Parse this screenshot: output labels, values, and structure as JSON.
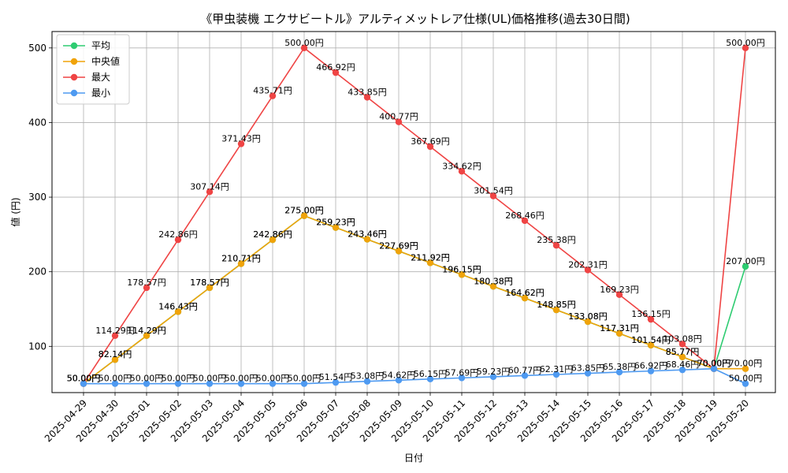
{
  "chart_data": {
    "type": "line",
    "title": "《甲虫装機 エクサビートル》アルティメットレア仕様(UL)価格推移(過去30日間)",
    "xlabel": "日付",
    "ylabel": "値 (円)",
    "ylim": [
      38,
      522
    ],
    "yticks": [
      100,
      200,
      300,
      400,
      500
    ],
    "grid": true,
    "legend_position": "top-left",
    "label_suffix": "円",
    "x": [
      "2025-04-29",
      "2025-04-30",
      "2025-05-01",
      "2025-05-02",
      "2025-05-03",
      "2025-05-04",
      "2025-05-05",
      "2025-05-06",
      "2025-05-07",
      "2025-05-08",
      "2025-05-09",
      "2025-05-10",
      "2025-05-11",
      "2025-05-12",
      "2025-05-13",
      "2025-05-14",
      "2025-05-15",
      "2025-05-16",
      "2025-05-17",
      "2025-05-18",
      "2025-05-19",
      "2025-05-20"
    ],
    "series": [
      {
        "name": "平均",
        "color": "#2ecc71",
        "values": [
          50.0,
          82.14,
          114.29,
          146.43,
          178.57,
          210.71,
          242.86,
          275.0,
          259.23,
          243.46,
          227.69,
          211.92,
          196.15,
          180.38,
          164.62,
          148.85,
          133.08,
          117.31,
          101.54,
          85.77,
          70.0,
          207.0
        ]
      },
      {
        "name": "中央値",
        "color": "#f0a30a",
        "values": [
          50.0,
          82.14,
          114.29,
          146.43,
          178.57,
          210.71,
          242.86,
          275.0,
          259.23,
          243.46,
          227.69,
          211.92,
          196.15,
          180.38,
          164.62,
          148.85,
          133.08,
          117.31,
          101.54,
          85.77,
          70.0,
          70.0
        ]
      },
      {
        "name": "最大",
        "color": "#ef4444",
        "values": [
          50.0,
          114.29,
          178.57,
          242.86,
          307.14,
          371.43,
          435.71,
          500.0,
          466.92,
          433.85,
          400.77,
          367.69,
          334.62,
          301.54,
          268.46,
          235.38,
          202.31,
          169.23,
          136.15,
          103.08,
          70.0,
          500.0
        ]
      },
      {
        "name": "最小",
        "color": "#4e9af1",
        "values": [
          50.0,
          50.0,
          50.0,
          50.0,
          50.0,
          50.0,
          50.0,
          50.0,
          51.54,
          53.08,
          54.62,
          56.15,
          57.69,
          59.23,
          60.77,
          62.31,
          63.85,
          65.38,
          66.92,
          68.46,
          70.0,
          50.0
        ]
      }
    ]
  }
}
